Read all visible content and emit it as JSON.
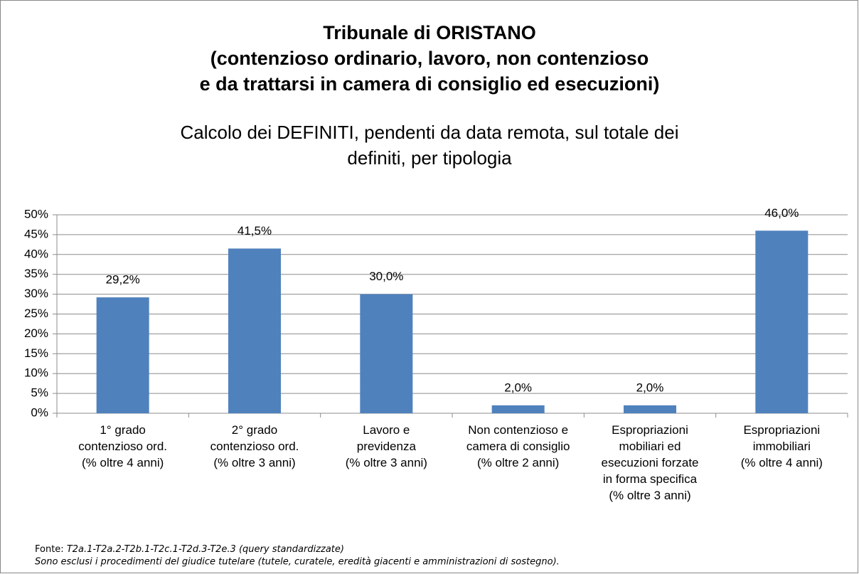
{
  "chart_data": {
    "type": "bar",
    "title": [
      "Tribunale di ORISTANO",
      "(contenzioso ordinario, lavoro, non contenzioso",
      "e da trattarsi in camera di consiglio ed esecuzioni)"
    ],
    "subtitle": [
      "Calcolo dei DEFINITI, pendenti da data remota, sul totale dei",
      "definiti, per tipologia"
    ],
    "categories": [
      "1° grado\ncontenzioso ord.\n(% oltre 4 anni)",
      "2° grado\ncontenzioso ord.\n(% oltre 3 anni)",
      "Lavoro e\nprevidenza\n(% oltre 3 anni)",
      "Non contenzioso e\ncamera di consiglio\n(% oltre 2 anni)",
      "Espropriazioni\nmobiliari ed\nesecuzioni forzate\nin forma specifica\n(% oltre 3 anni)",
      "Espropriazioni\nimmobiliari\n(% oltre 4 anni)"
    ],
    "values": [
      29.2,
      41.5,
      30.0,
      2.0,
      2.0,
      46.0
    ],
    "value_labels": [
      "29,2%",
      "41,5%",
      "30,0%",
      "2,0%",
      "2,0%",
      "46,0%"
    ],
    "color": "#4f81bd",
    "ylim": [
      0,
      50
    ],
    "yticks": [
      {
        "value": 0,
        "label": "0%"
      },
      {
        "value": 5,
        "label": "5%"
      },
      {
        "value": 10,
        "label": "10%"
      },
      {
        "value": 15,
        "label": "15%"
      },
      {
        "value": 20,
        "label": "20%"
      },
      {
        "value": 25,
        "label": "25%"
      },
      {
        "value": 30,
        "label": "30%"
      },
      {
        "value": 35,
        "label": "35%"
      },
      {
        "value": 40,
        "label": "40%"
      },
      {
        "value": 45,
        "label": "45%"
      },
      {
        "value": 50,
        "label": "50%"
      }
    ],
    "grid": true,
    "source_label": "Fonte:",
    "source": "T2a.1-T2a.2-T2b.1-T2c.1-T2d.3-T2e.3 (query standardizzate)",
    "note": "Sono esclusi i procedimenti del giudice tutelare (tutele, curatele, eredità giacenti e amministrazioni di sostegno)."
  }
}
